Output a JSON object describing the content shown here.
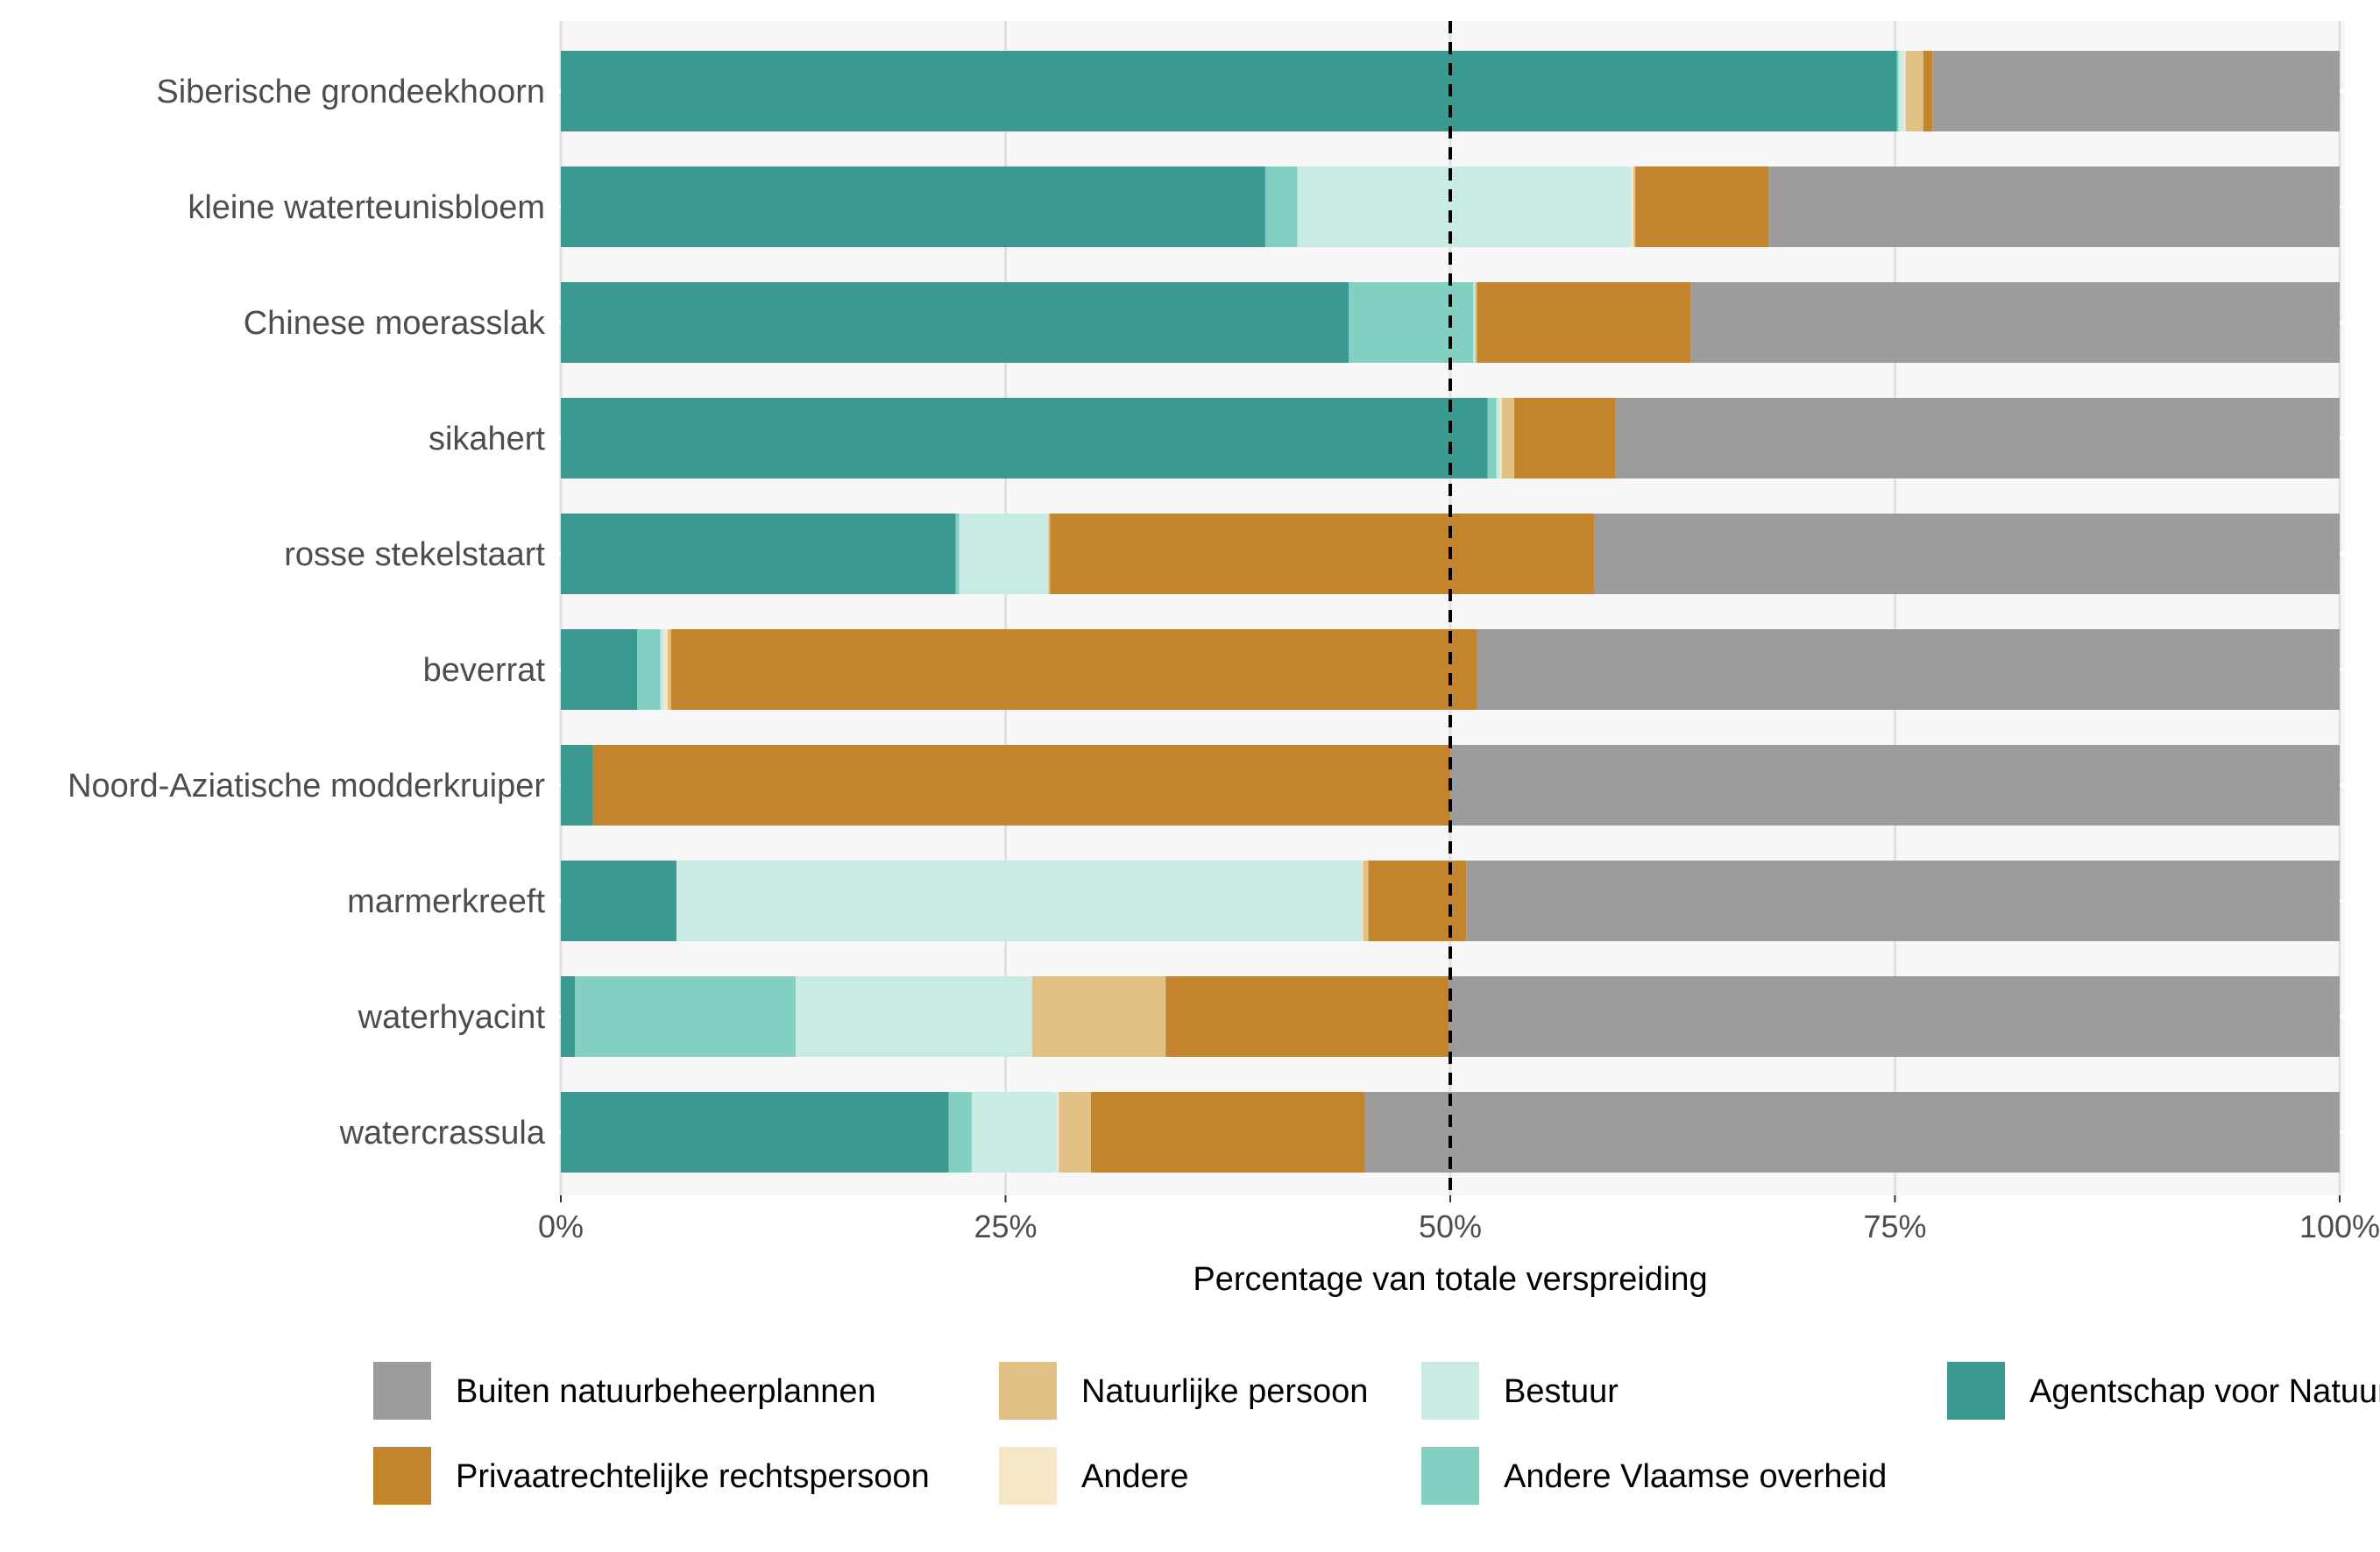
{
  "chart_data": {
    "type": "bar",
    "orientation": "horizontal",
    "stacked": true,
    "xlabel": "Percentage van totale verspreiding",
    "ylabel": "",
    "xlim": [
      0,
      100
    ],
    "xticks": [
      0,
      25,
      50,
      75,
      100
    ],
    "xtick_labels": [
      "0%",
      "25%",
      "50%",
      "75%",
      "100%"
    ],
    "reference_line": {
      "x": 50,
      "style": "dashed"
    },
    "grid": true,
    "legend_position": "bottom",
    "categories": [
      "Siberische grondeekhoorn",
      "kleine waterteunisbloem",
      "Chinese moerasslak",
      "sikahert",
      "rosse stekelstaart",
      "beverrat",
      "Noord-Aziatische modderkruiper",
      "marmerkreeft",
      "waterhyacint",
      "watercrassula"
    ],
    "series": [
      {
        "name": "Agentschap voor Natuur en Bos",
        "color": "#3a9a8f",
        "values": [
          75.1,
          39.6,
          44.3,
          52.1,
          22.2,
          4.3,
          1.8,
          6.5,
          0.8,
          21.8
        ]
      },
      {
        "name": "Andere Vlaamse overheid",
        "color": "#83cfc2",
        "values": [
          0.1,
          1.8,
          7.0,
          0.5,
          0.2,
          1.3,
          0.0,
          0.0,
          12.4,
          1.3
        ]
      },
      {
        "name": "Bestuur",
        "color": "#c8ebe4",
        "values": [
          0.3,
          18.8,
          0.1,
          0.2,
          5.0,
          0.2,
          0.0,
          38.5,
          13.3,
          4.8
        ]
      },
      {
        "name": "Andere",
        "color": "#f6e7c7",
        "values": [
          0.1,
          0.1,
          0.0,
          0.1,
          0.0,
          0.2,
          0.0,
          0.1,
          0.0,
          0.1
        ]
      },
      {
        "name": "Natuurlijke persoon",
        "color": "#e0c085",
        "values": [
          1.0,
          0.1,
          0.1,
          0.7,
          0.1,
          0.2,
          0.0,
          0.3,
          7.5,
          1.8
        ]
      },
      {
        "name": "Privaatrechtelijke rechtspersoon",
        "color": "#c2852e",
        "values": [
          0.5,
          7.5,
          12.0,
          5.7,
          30.6,
          45.3,
          48.2,
          5.5,
          15.9,
          15.4
        ]
      },
      {
        "name": "Buiten natuurbeheerplannen",
        "color": "#9c9c9c",
        "values": [
          22.9,
          32.1,
          36.5,
          40.7,
          41.9,
          48.5,
          50.0,
          49.1,
          50.1,
          54.8
        ]
      }
    ],
    "legend_order": [
      "Buiten natuurbeheerplannen",
      "Privaatrechtelijke rechtspersoon",
      "Natuurlijke persoon",
      "Andere",
      "Bestuur",
      "Andere Vlaamse overheid",
      "Agentschap voor Natuur en Bos"
    ],
    "colors": {
      "panel_background": "#f7f7f7",
      "grid": "#e0e0e0",
      "reference_line": "#000000"
    }
  }
}
